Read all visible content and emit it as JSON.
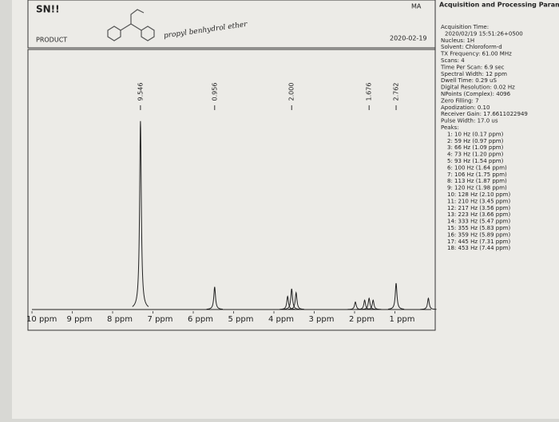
{
  "header": {
    "title": "SN!!",
    "product": "PRODUCT",
    "note": "propyl benhydrol ether",
    "initials": "MA",
    "date": "2020-02-19"
  },
  "panel": {
    "title": "Acquisition and Processing Parameters",
    "lines": [
      "Acquisition Time:",
      "2020/02/19 15:51:26+0500",
      "Nucleus: 1H",
      "Solvent: Chloroform-d",
      "TX Frequency: 61.00 MHz",
      "Scans: 4",
      "Time Per Scan: 6.9 sec",
      "Spectral Width: 12 ppm",
      "Dwell Time: 0.29 uS",
      "Digital Resolution: 0.02 Hz",
      "NPoints (Complex): 4096",
      "Zero Filling: 7",
      "Apodization: 0.10",
      "Receiver Gain: 17.6611022949",
      "Pulse Width: 17.0 us",
      "Peaks:"
    ],
    "peaks": [
      "1: 10 Hz (0.17 ppm)",
      "2: 59 Hz (0.97 ppm)",
      "3: 66 Hz (1.09 ppm)",
      "4: 73 Hz (1.20 ppm)",
      "5: 93 Hz (1.54 ppm)",
      "6: 100 Hz (1.64 ppm)",
      "7: 106 Hz (1.75 ppm)",
      "8: 113 Hz (1.87 ppm)",
      "9: 120 Hz (1.98 ppm)",
      "10: 128 Hz (2.10 ppm)",
      "11: 210 Hz (3.45 ppm)",
      "12: 217 Hz (3.56 ppm)",
      "13: 223 Hz (3.66 ppm)",
      "14: 333 Hz (5.47 ppm)",
      "15: 355 Hz (5.83 ppm)",
      "16: 359 Hz (5.89 ppm)",
      "17: 445 Hz (7.31 ppm)",
      "18: 453 Hz (7.44 ppm)"
    ]
  },
  "chart_data": {
    "type": "nmr",
    "x": [
      7.31,
      5.47,
      3.66,
      3.56,
      3.45,
      1.98,
      1.75,
      1.64,
      1.54,
      0.97,
      0.17
    ],
    "values": [
      100,
      12,
      7,
      11,
      9,
      4,
      5,
      6,
      5,
      14,
      6
    ],
    "xlim": [
      10.1,
      0
    ],
    "ylim": [
      0,
      105
    ],
    "xticks": [
      {
        "value": 10,
        "label": "10 ppm"
      },
      {
        "value": 9,
        "label": "9 ppm"
      },
      {
        "value": 8,
        "label": "8 ppm"
      },
      {
        "value": 7,
        "label": "7 ppm"
      },
      {
        "value": 6,
        "label": "6 ppm"
      },
      {
        "value": 5,
        "label": "5 ppm"
      },
      {
        "value": 4,
        "label": "4 ppm"
      },
      {
        "value": 3,
        "label": "3 ppm"
      },
      {
        "value": 2,
        "label": "2 ppm"
      },
      {
        "value": 1,
        "label": "1 ppm"
      }
    ],
    "integrals": [
      {
        "at": 7.31,
        "label": "9.546"
      },
      {
        "at": 5.47,
        "label": "0.956"
      },
      {
        "at": 3.56,
        "label": "2.000"
      },
      {
        "at": 1.64,
        "label": "1.676"
      },
      {
        "at": 0.97,
        "label": "2.762"
      }
    ],
    "color": "#222222"
  }
}
